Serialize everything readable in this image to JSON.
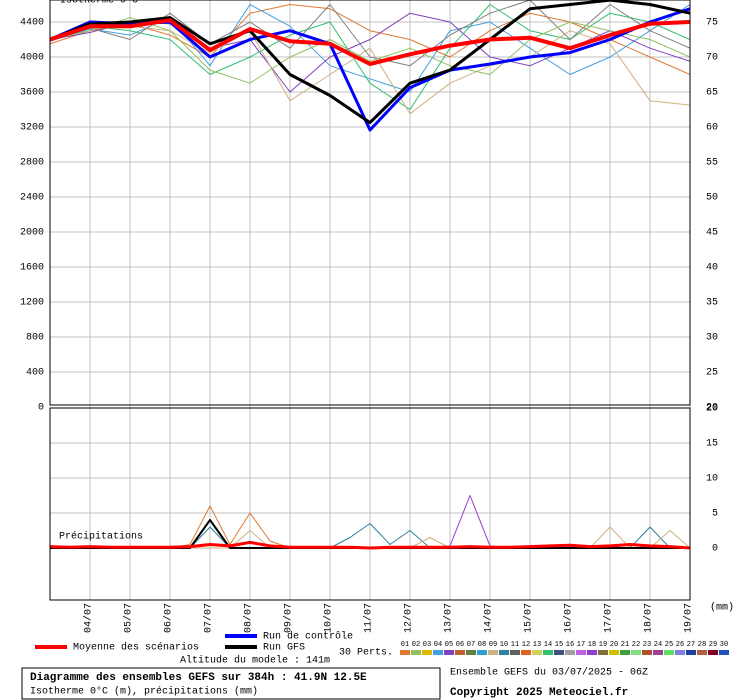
{
  "chart_data": [
    {
      "type": "line",
      "title": "Isotherme 0°C",
      "x": [
        0,
        24,
        48,
        72,
        96,
        120,
        144,
        168,
        192,
        216,
        240,
        264,
        288,
        312,
        336,
        360,
        384
      ],
      "xlim": [
        0,
        384
      ],
      "ylim": [
        0,
        4651
      ],
      "yticks": [
        0,
        400,
        800,
        1200,
        1600,
        2000,
        2400,
        2800,
        3200,
        3600,
        4000,
        4400
      ],
      "y2lim": [
        20,
        78.14
      ],
      "y2ticks": [
        20,
        25,
        30,
        35,
        40,
        45,
        50,
        55,
        60,
        65,
        70,
        75
      ],
      "series": [
        {
          "color": "#e07830",
          "values": [
            4150,
            4300,
            4380,
            4250,
            4000,
            4500,
            4600,
            4550,
            4300,
            4200,
            4000,
            4300,
            4500,
            4400,
            4200,
            4000,
            3800
          ]
        },
        {
          "color": "#40a0e0",
          "values": [
            4180,
            4320,
            4250,
            4450,
            3900,
            4600,
            4350,
            3900,
            3750,
            3600,
            4300,
            4400,
            4100,
            3800,
            4000,
            4300,
            4600
          ]
        },
        {
          "color": "#8040c0",
          "values": [
            4200,
            4280,
            4400,
            4380,
            4100,
            4200,
            3600,
            4000,
            4200,
            4500,
            4400,
            4000,
            3900,
            4100,
            4300,
            4100,
            3950
          ]
        },
        {
          "color": "#30c070",
          "values": [
            4220,
            4350,
            4300,
            4200,
            3800,
            4000,
            4250,
            4400,
            3700,
            3400,
            4100,
            4600,
            4300,
            4200,
            4500,
            4400,
            4200
          ]
        },
        {
          "color": "#d0b080",
          "values": [
            4190,
            4400,
            4350,
            4300,
            4050,
            4300,
            3500,
            3800,
            4100,
            3350,
            3700,
            3900,
            4000,
            4300,
            4150,
            3500,
            3450
          ]
        },
        {
          "color": "#808080",
          "values": [
            4210,
            4330,
            4200,
            4500,
            4150,
            4400,
            4100,
            4600,
            4000,
            3900,
            4250,
            4500,
            4650,
            4200,
            4600,
            4300,
            4100
          ]
        },
        {
          "color": "#90c060",
          "values": [
            4200,
            4300,
            4450,
            4300,
            3850,
            3700,
            4000,
            4200,
            3950,
            4100,
            3900,
            3800,
            4200,
            4400,
            4300,
            4200,
            4000
          ]
        },
        {
          "name": "Run de contrôle",
          "color": "#0000ff",
          "width": 3,
          "values": [
            4200,
            4400,
            4380,
            4400,
            4000,
            4200,
            4300,
            4150,
            3165,
            3650,
            3850,
            3920,
            4000,
            4050,
            4200,
            4400,
            4550
          ]
        },
        {
          "name": "Run GFS",
          "color": "#000000",
          "width": 3,
          "values": [
            4200,
            4380,
            4400,
            4450,
            4150,
            4300,
            3800,
            3560,
            3250,
            3700,
            3850,
            4200,
            4550,
            4600,
            4650,
            4600,
            4500
          ]
        },
        {
          "name": "Moyenne des scénarios",
          "color": "#ff0000",
          "width": 4,
          "values": [
            4200,
            4350,
            4350,
            4420,
            4080,
            4320,
            4180,
            4150,
            3920,
            4030,
            4130,
            4200,
            4220,
            4100,
            4250,
            4380,
            4400
          ]
        }
      ]
    },
    {
      "type": "line",
      "title": "Précipitations",
      "y_label": "(mm)",
      "x": [
        0,
        12,
        24,
        36,
        48,
        60,
        72,
        84,
        96,
        108,
        120,
        132,
        144,
        156,
        168,
        180,
        192,
        204,
        216,
        228,
        240,
        252,
        264,
        276,
        288,
        300,
        312,
        324,
        336,
        348,
        360,
        372,
        384
      ],
      "xlim": [
        0,
        384
      ],
      "xticks": [
        {
          "value": 24,
          "label": "04/07"
        },
        {
          "value": 48,
          "label": "05/07"
        },
        {
          "value": 72,
          "label": "06/07"
        },
        {
          "value": 96,
          "label": "07/07"
        },
        {
          "value": 120,
          "label": "08/07"
        },
        {
          "value": 144,
          "label": "09/07"
        },
        {
          "value": 168,
          "label": "10/07"
        },
        {
          "value": 192,
          "label": "11/07"
        },
        {
          "value": 216,
          "label": "12/07"
        },
        {
          "value": 240,
          "label": "13/07"
        },
        {
          "value": 264,
          "label": "14/07"
        },
        {
          "value": 288,
          "label": "15/07"
        },
        {
          "value": 312,
          "label": "16/07"
        },
        {
          "value": 336,
          "label": "17/07"
        },
        {
          "value": 360,
          "label": "18/07"
        },
        {
          "value": 384,
          "label": "19/07"
        }
      ],
      "y2lim": [
        -7.43,
        20
      ],
      "y2ticks": [
        0,
        5,
        10,
        15,
        20
      ],
      "series": [
        {
          "color": "#e07830",
          "axis": "y2",
          "values": [
            0,
            0,
            0,
            0,
            0,
            0,
            0,
            0.5,
            6,
            0.5,
            5,
            1,
            0,
            0,
            0,
            0,
            0,
            0,
            0,
            0,
            0,
            0,
            0,
            0,
            0,
            0,
            0,
            0,
            0,
            0.5,
            0,
            0,
            0
          ]
        },
        {
          "color": "#9040d0",
          "axis": "y2",
          "values": [
            0,
            0,
            0,
            0,
            0,
            0,
            0,
            0,
            0,
            0,
            0,
            0,
            0,
            0,
            0,
            0,
            0,
            0,
            0,
            0,
            0.3,
            7.5,
            0.3,
            0,
            0,
            0,
            0,
            0,
            0,
            0,
            0,
            0,
            0
          ]
        },
        {
          "color": "#3080a0",
          "axis": "y2",
          "values": [
            0,
            0,
            0,
            0,
            0,
            0,
            0,
            0,
            3,
            0,
            0,
            0,
            0,
            0,
            0,
            1.5,
            3.5,
            0.5,
            2.5,
            0,
            0,
            0,
            0,
            0,
            0,
            0,
            0,
            0,
            0,
            0,
            3,
            0,
            0
          ]
        },
        {
          "color": "#d0b080",
          "axis": "y2",
          "values": [
            0,
            0,
            0,
            0,
            0,
            0,
            0,
            0,
            0,
            0,
            2.5,
            0,
            0,
            0,
            0,
            0,
            0,
            0,
            0,
            1.5,
            0,
            0,
            0,
            0,
            0,
            0,
            0,
            0,
            3,
            0,
            0,
            2.5,
            0
          ]
        },
        {
          "color": "#000000",
          "axis": "y2",
          "width": 2,
          "values": [
            0,
            0,
            0,
            0,
            0,
            0,
            0,
            0,
            4,
            0,
            0,
            0,
            0,
            0,
            0,
            0,
            0,
            0,
            0,
            0,
            0,
            0,
            0,
            0,
            0,
            0,
            0,
            0,
            0,
            0,
            0,
            0,
            0
          ]
        },
        {
          "color": "#ff0000",
          "axis": "y2",
          "width": 3,
          "values": [
            0.2,
            0.1,
            0.2,
            0.1,
            0.1,
            0.1,
            0.1,
            0.2,
            0.5,
            0.3,
            0.8,
            0.3,
            0.1,
            0.1,
            0.1,
            0.1,
            0,
            0.1,
            0.1,
            0.1,
            0.1,
            0.2,
            0.1,
            0.1,
            0.2,
            0.3,
            0.4,
            0.2,
            0.3,
            0.5,
            0.3,
            0.2,
            0
          ]
        }
      ]
    }
  ],
  "perturbations": {
    "label": "30 Perts.",
    "members": [
      {
        "name": "01",
        "color": "#e07830"
      },
      {
        "name": "02",
        "color": "#90c060"
      },
      {
        "name": "03",
        "color": "#e0b800"
      },
      {
        "name": "04",
        "color": "#40a0e0"
      },
      {
        "name": "05",
        "color": "#8040c0"
      },
      {
        "name": "06",
        "color": "#c06030"
      },
      {
        "name": "07",
        "color": "#608040"
      },
      {
        "name": "08",
        "color": "#30a0d0"
      },
      {
        "name": "09",
        "color": "#d0b080"
      },
      {
        "name": "10",
        "color": "#3080a0"
      },
      {
        "name": "11",
        "color": "#606060"
      },
      {
        "name": "12",
        "color": "#e06020"
      },
      {
        "name": "13",
        "color": "#d0d060"
      },
      {
        "name": "14",
        "color": "#30c070"
      },
      {
        "name": "15",
        "color": "#405080"
      },
      {
        "name": "16",
        "color": "#a0a0a0"
      },
      {
        "name": "17",
        "color": "#c060e0"
      },
      {
        "name": "18",
        "color": "#9040d0"
      },
      {
        "name": "19",
        "color": "#807040"
      },
      {
        "name": "20",
        "color": "#d0c000"
      },
      {
        "name": "21",
        "color": "#40a040"
      },
      {
        "name": "22",
        "color": "#80e080"
      },
      {
        "name": "23",
        "color": "#b05030"
      },
      {
        "name": "24",
        "color": "#a04090"
      },
      {
        "name": "25",
        "color": "#60e060"
      },
      {
        "name": "26",
        "color": "#8080e0"
      },
      {
        "name": "27",
        "color": "#2040a0"
      },
      {
        "name": "28",
        "color": "#b06040"
      },
      {
        "name": "29",
        "color": "#800020"
      },
      {
        "name": "30",
        "color": "#2050c0"
      }
    ]
  },
  "altitude": "Altitude du modele : 141m",
  "footer": {
    "title": "Diagramme des ensembles GEFS sur 384h : 41.9N 12.5E",
    "subtitle": "Isotherme 0°C (m), précipitations (mm)",
    "run": "Ensemble GEFS du 03/07/2025 - 06Z",
    "copyright": "Copyright 2025 Meteociel.fr"
  }
}
